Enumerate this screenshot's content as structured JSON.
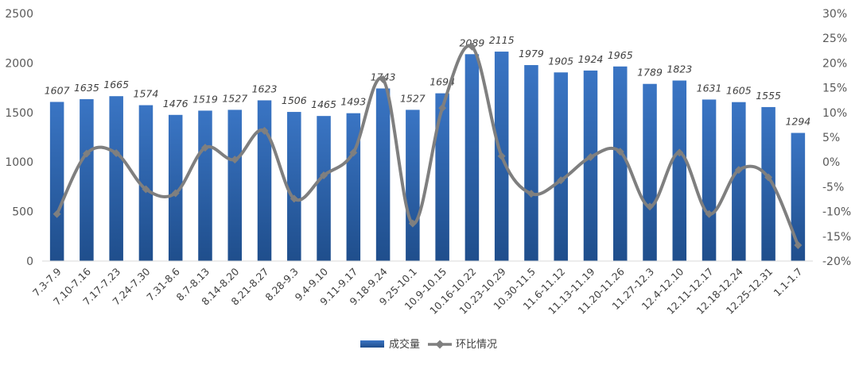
{
  "chart_data": {
    "type": "bar",
    "categories": [
      "7.3-7.9",
      "7.10-7.16",
      "7.17-7.23",
      "7.24-7.30",
      "7.31-8.6",
      "8.7-8.13",
      "8.14-8.20",
      "8.21-8.27",
      "8.28-9.3",
      "9.4-9.10",
      "9.11-9.17",
      "9.18-9.24",
      "9.25-10.1",
      "10.9-10.15",
      "10.16-10.22",
      "10.23-10.29",
      "10.30-11.5",
      "11.6-11.12",
      "11.13-11.19",
      "11.20-11.26",
      "11.27-12.3",
      "12.4-12.10",
      "12.11-12.17",
      "12.18-12.24",
      "12.25-12.31",
      "1.1-1.7"
    ],
    "series": [
      {
        "name": "成交量",
        "type": "bar",
        "axis": "left",
        "values": [
          1607,
          1635,
          1665,
          1574,
          1476,
          1519,
          1527,
          1623,
          1506,
          1465,
          1493,
          1743,
          1527,
          1694,
          2089,
          2115,
          1979,
          1905,
          1924,
          1965,
          1789,
          1823,
          1631,
          1605,
          1555,
          1294
        ]
      },
      {
        "name": "环比情况",
        "type": "line",
        "axis": "right",
        "values": [
          -10.5,
          1.7,
          1.8,
          -5.5,
          -6.3,
          2.9,
          0.5,
          6.3,
          -7.4,
          -2.7,
          1.9,
          16.7,
          -12.4,
          10.9,
          23.3,
          1.2,
          -6.4,
          -3.7,
          1.0,
          2.1,
          -9.0,
          1.9,
          -10.5,
          -1.6,
          -3.1,
          -16.8
        ]
      }
    ],
    "y_left": {
      "min": 0,
      "max": 2500,
      "ticks": [
        "0",
        "500",
        "1000",
        "1500",
        "2000",
        "2500"
      ]
    },
    "y_right": {
      "min": -20,
      "max": 30,
      "ticks": [
        "-20%",
        "-15%",
        "-10%",
        "-5%",
        "0%",
        "5%",
        "10%",
        "15%",
        "20%",
        "25%",
        "30%"
      ]
    },
    "data_labels": [
      "1607",
      "1635",
      "1665",
      "1574",
      "1476",
      "1519",
      "1527",
      "1623",
      "1506",
      "1465",
      "1493",
      "1743",
      "1527",
      "1694",
      "2089",
      "2115",
      "1979",
      "1905",
      "1924",
      "1965",
      "1789",
      "1823",
      "1631",
      "1605",
      "1555",
      "1294"
    ],
    "legend_position": "bottom",
    "grid": false,
    "colors": {
      "bar_top": "#3a75c4",
      "bar_bottom": "#1f4e8c",
      "line": "#7f7f7f",
      "axis": "#d9d9d9"
    }
  }
}
